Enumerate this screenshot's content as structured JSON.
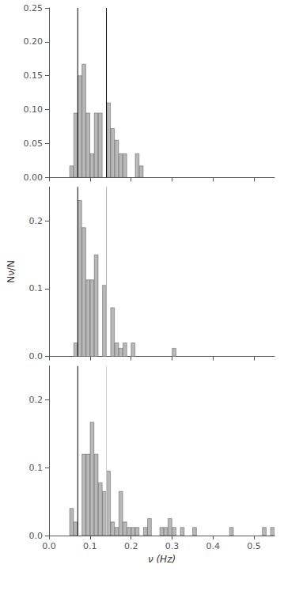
{
  "chart_data": [
    {
      "type": "bar",
      "color": "#b8b8b8",
      "grid": false,
      "tick_labels": "y",
      "xlim": [
        0.0,
        0.55
      ],
      "xticks": [
        {
          "value": 0.0,
          "label": "0.0"
        },
        0.1,
        0.2,
        0.3,
        0.4,
        0.5
      ],
      "ylim": [
        0.0,
        0.25
      ],
      "yticks": [
        {
          "value": 0.0,
          "label": "0.00"
        },
        0.05,
        {
          "value": 0.1,
          "label": "0.10"
        },
        0.15,
        {
          "value": 0.2,
          "label": "0.20"
        },
        0.25
      ],
      "vlines": [
        {
          "x": 0.07,
          "color": "black"
        },
        {
          "x": 0.14,
          "color": "black"
        }
      ],
      "x": [
        0.055,
        0.065,
        0.075,
        0.085,
        0.095,
        0.105,
        0.115,
        0.125,
        0.135,
        0.145,
        0.155,
        0.165,
        0.175,
        0.185,
        0.195,
        0.205,
        0.215,
        0.225,
        0.235,
        0.245,
        0.255,
        0.265,
        0.275,
        0.285,
        0.295,
        0.305,
        0.315,
        0.325,
        0.335,
        0.345,
        0.355,
        0.365,
        0.375,
        0.385,
        0.395,
        0.405,
        0.415,
        0.425,
        0.435,
        0.445,
        0.455,
        0.465,
        0.475,
        0.485,
        0.495,
        0.505,
        0.515,
        0.525,
        0.535,
        0.545
      ],
      "values": [
        0.017,
        0.095,
        0.15,
        0.167,
        0.095,
        0.035,
        0.095,
        0.095,
        0.0,
        0.11,
        0.072,
        0.055,
        0.035,
        0.035,
        0.0,
        0.0,
        0.035,
        0.017,
        0.0,
        0.0,
        0.0,
        0.0,
        0.0,
        0.0,
        0.0,
        0.0,
        0.0,
        0.0,
        0.0,
        0.0,
        0.0,
        0.0,
        0.0,
        0.0,
        0.0,
        0.0,
        0.0,
        0.0,
        0.0,
        0.0,
        0.0,
        0.0,
        0.0,
        0.0,
        0.0,
        0.0,
        0.0,
        0.0,
        0.0,
        0.0
      ]
    },
    {
      "type": "bar",
      "color": "#b8b8b8",
      "grid": false,
      "tick_labels": "y",
      "ylabel": "Nν/N",
      "xlim": [
        0.0,
        0.55
      ],
      "xticks": [
        {
          "value": 0.0,
          "label": "0.0"
        },
        0.1,
        0.2,
        0.3,
        0.4,
        0.5
      ],
      "ylim": [
        0.0,
        0.25
      ],
      "yticks": [
        {
          "value": 0.0,
          "label": "0.0"
        },
        0.1,
        0.2
      ],
      "vlines": [
        {
          "x": 0.07,
          "color": "black"
        },
        {
          "x": 0.14,
          "color": "#aaaaaa"
        }
      ],
      "x": [
        0.055,
        0.065,
        0.075,
        0.085,
        0.095,
        0.105,
        0.115,
        0.125,
        0.135,
        0.145,
        0.155,
        0.165,
        0.175,
        0.185,
        0.195,
        0.205,
        0.215,
        0.225,
        0.235,
        0.245,
        0.255,
        0.265,
        0.275,
        0.285,
        0.295,
        0.305,
        0.315,
        0.325,
        0.335,
        0.345,
        0.355,
        0.365,
        0.375,
        0.385,
        0.395,
        0.405,
        0.415,
        0.425,
        0.435,
        0.445,
        0.455,
        0.465,
        0.475,
        0.485,
        0.495,
        0.505,
        0.515,
        0.525,
        0.535,
        0.545
      ],
      "values": [
        0.0,
        0.02,
        0.23,
        0.19,
        0.113,
        0.113,
        0.15,
        0.0,
        0.105,
        0.0,
        0.072,
        0.02,
        0.012,
        0.02,
        0.0,
        0.02,
        0.0,
        0.0,
        0.0,
        0.0,
        0.0,
        0.0,
        0.0,
        0.0,
        0.0,
        0.012,
        0.0,
        0.0,
        0.0,
        0.0,
        0.0,
        0.0,
        0.0,
        0.0,
        0.0,
        0.0,
        0.0,
        0.0,
        0.0,
        0.0,
        0.0,
        0.0,
        0.0,
        0.0,
        0.0,
        0.0,
        0.0,
        0.0,
        0.0,
        0.0
      ]
    },
    {
      "type": "bar",
      "color": "#b8b8b8",
      "grid": false,
      "tick_labels": true,
      "xlabel": "ν (Hz)",
      "xlim": [
        0.0,
        0.55
      ],
      "xticks": [
        {
          "value": 0.0,
          "label": "0.0"
        },
        0.1,
        0.2,
        0.3,
        0.4,
        0.5
      ],
      "ylim": [
        0.0,
        0.25
      ],
      "yticks": [
        {
          "value": 0.0,
          "label": "0.0"
        },
        0.1,
        0.2
      ],
      "vlines": [
        {
          "x": 0.07,
          "color": "black"
        },
        {
          "x": 0.14,
          "color": "#cccccc"
        }
      ],
      "x": [
        0.045,
        0.055,
        0.065,
        0.075,
        0.085,
        0.095,
        0.105,
        0.115,
        0.125,
        0.135,
        0.145,
        0.155,
        0.165,
        0.175,
        0.185,
        0.195,
        0.205,
        0.215,
        0.225,
        0.235,
        0.245,
        0.255,
        0.265,
        0.275,
        0.285,
        0.295,
        0.305,
        0.315,
        0.325,
        0.335,
        0.345,
        0.355,
        0.365,
        0.375,
        0.385,
        0.395,
        0.405,
        0.415,
        0.425,
        0.435,
        0.445,
        0.455,
        0.465,
        0.475,
        0.485,
        0.495,
        0.505,
        0.515,
        0.525,
        0.535,
        0.545
      ],
      "values": [
        0.0,
        0.04,
        0.02,
        0.0,
        0.12,
        0.12,
        0.167,
        0.12,
        0.078,
        0.065,
        0.095,
        0.02,
        0.012,
        0.065,
        0.02,
        0.012,
        0.012,
        0.012,
        0.0,
        0.012,
        0.025,
        0.0,
        0.0,
        0.012,
        0.012,
        0.025,
        0.012,
        0.0,
        0.012,
        0.0,
        0.0,
        0.012,
        0.0,
        0.0,
        0.0,
        0.0,
        0.0,
        0.0,
        0.0,
        0.0,
        0.012,
        0.0,
        0.0,
        0.0,
        0.0,
        0.0,
        0.0,
        0.0,
        0.012,
        0.0,
        0.012
      ]
    }
  ]
}
